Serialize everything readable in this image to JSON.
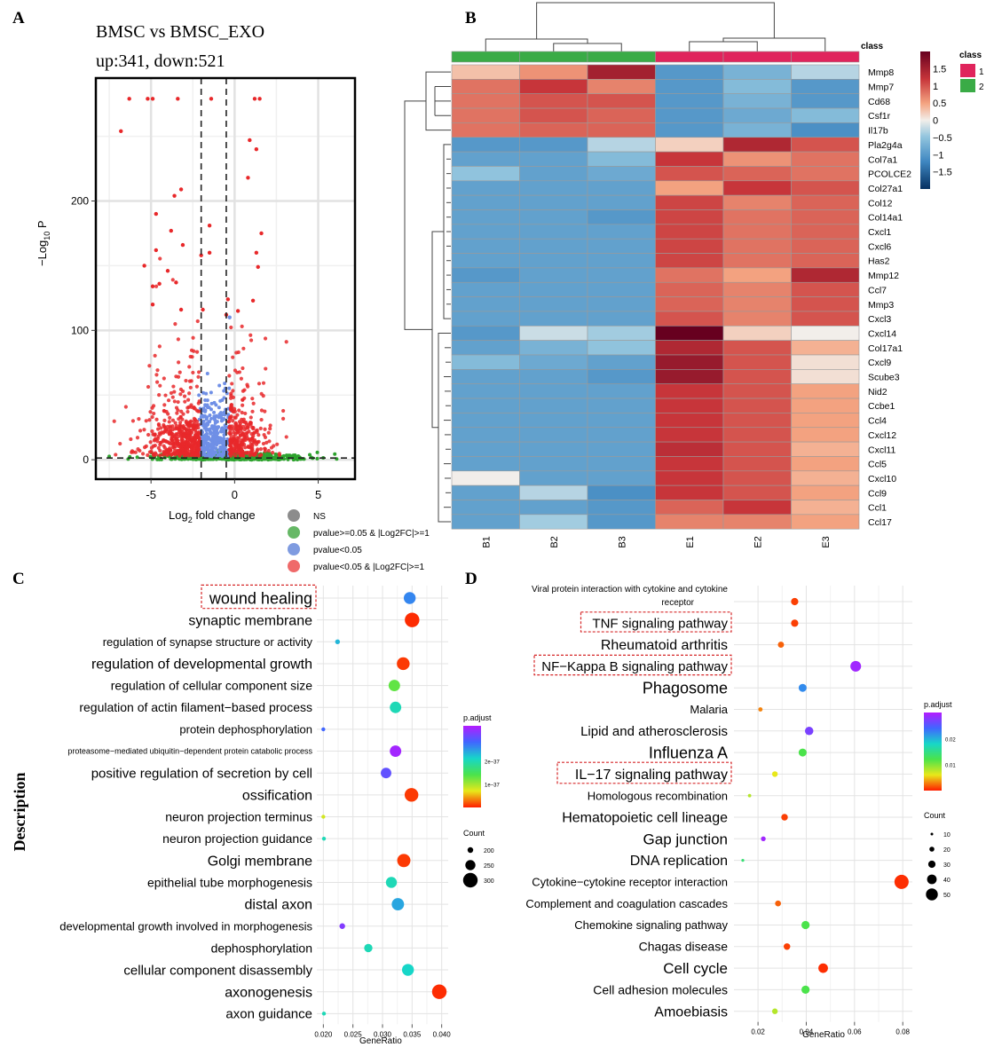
{
  "panels": {
    "A": "A",
    "B": "B",
    "C": "C",
    "D": "D"
  },
  "chart_data": [
    {
      "type": "scatter",
      "panel": "A",
      "title": "BMSC vs BMSC_EXO",
      "subtitle": "up:341, down:521",
      "xlabel_pre": "Log",
      "xlabel_sub": "2",
      "xlabel_post": " fold change",
      "ylabel_pre": "−Log",
      "ylabel_sub": "10",
      "ylabel_post": " P",
      "xlim": [
        -8.3,
        7.2
      ],
      "ylim": [
        -15,
        295
      ],
      "x_ticks": [
        -5,
        0,
        5
      ],
      "x_tick_labels": [
        "-5",
        "0",
        "5"
      ],
      "y_ticks": [
        0,
        100,
        200
      ],
      "y_tick_labels": [
        "0",
        "100",
        "200"
      ],
      "fc_threshold": [
        -2,
        -0.5
      ],
      "p_threshold": 1.3,
      "legend": [
        {
          "label": "NS",
          "color": "#8c8c8c"
        },
        {
          "label": "pvalue>=0.05 & |Log2FC|>=1",
          "color": "#66b866"
        },
        {
          "label": "pvalue<0.05",
          "color": "#7f9be0"
        },
        {
          "label": "pvalue<0.05 & |Log2FC|>=1",
          "color": "#ef6a6a"
        }
      ],
      "colors": {
        "red": "#e8282a",
        "blue": "#6f8fe6",
        "green": "#2ea32e",
        "gray": "#8c8c8c"
      },
      "highlight_points": [
        [
          -6.3,
          279
        ],
        [
          -5.2,
          279
        ],
        [
          -4.9,
          279
        ],
        [
          -3.4,
          279
        ],
        [
          -1.4,
          279
        ],
        [
          1.2,
          279
        ],
        [
          1.5,
          279
        ],
        [
          -6.8,
          254
        ],
        [
          0.9,
          247
        ],
        [
          1.3,
          240
        ],
        [
          0.8,
          218
        ],
        [
          -3.2,
          209
        ],
        [
          -3.6,
          204
        ],
        [
          -4.7,
          190
        ],
        [
          -1.5,
          181
        ],
        [
          -3.8,
          177
        ],
        [
          1.6,
          175
        ],
        [
          -3.1,
          166
        ],
        [
          -4.7,
          162
        ],
        [
          1.3,
          160
        ],
        [
          -1.5,
          160
        ],
        [
          -2.0,
          158
        ],
        [
          -5.4,
          150
        ],
        [
          -4.0,
          146
        ],
        [
          1.4,
          149
        ],
        [
          -4.5,
          136
        ],
        [
          -3.5,
          137
        ],
        [
          -4.9,
          134
        ],
        [
          1.1,
          123
        ],
        [
          -0.4,
          124
        ],
        [
          -4.9,
          120
        ],
        [
          -3.2,
          116
        ],
        [
          -1.9,
          116
        ],
        [
          0.2,
          115
        ],
        [
          -0.5,
          112
        ]
      ],
      "blue_highlight": [
        [
          -0.3,
          110
        ]
      ],
      "annotation": {
        "note": ""
      }
    },
    {
      "type": "heatmap",
      "panel": "B",
      "columns": [
        "B1",
        "B2",
        "B3",
        "E1",
        "E2",
        "E3"
      ],
      "column_class": [
        2,
        2,
        2,
        1,
        1,
        1
      ],
      "class_title": "class",
      "class_colors": {
        "1": "#e0245c",
        "2": "#3aab46"
      },
      "class_labels": [
        "1",
        "2"
      ],
      "rows": [
        "Mmp8",
        "Mmp7",
        "Cd68",
        "Csf1r",
        "Il17b",
        "Pla2g4a",
        "Col7a1",
        "PCOLCE2",
        "Col27a1",
        "Col12",
        "Col14a1",
        "Cxcl1",
        "Cxcl6",
        "Has2",
        "Mmp12",
        "Ccl7",
        "Mmp3",
        "Cxcl3",
        "Cxcl14",
        "Col17a1",
        "Cxcl9",
        "Scube3",
        "Nid2",
        "Ccbe1",
        "Ccl4",
        "Cxcl12",
        "Cxcl11",
        "Ccl5",
        "Cxcl10",
        "Ccl9",
        "Ccl1",
        "Ccl17"
      ],
      "values": [
        [
          0.3,
          0.6,
          1.5,
          -1.0,
          -0.7,
          -0.3
        ],
        [
          0.8,
          1.2,
          0.7,
          -1.0,
          -0.6,
          -1.0
        ],
        [
          0.8,
          1.0,
          1.0,
          -1.0,
          -0.7,
          -1.0
        ],
        [
          0.8,
          1.0,
          0.9,
          -1.0,
          -0.8,
          -0.6
        ],
        [
          0.8,
          0.9,
          0.9,
          -1.0,
          -0.7,
          -1.1
        ],
        [
          -1.0,
          -1.0,
          -0.3,
          0.2,
          1.4,
          1.0
        ],
        [
          -0.9,
          -0.9,
          -0.6,
          1.2,
          0.6,
          0.8
        ],
        [
          -0.5,
          -0.9,
          -0.8,
          1.0,
          0.9,
          0.8
        ],
        [
          -0.9,
          -0.9,
          -0.9,
          0.5,
          1.2,
          1.0
        ],
        [
          -0.9,
          -0.9,
          -0.9,
          1.1,
          0.7,
          0.9
        ],
        [
          -0.9,
          -0.9,
          -1.0,
          1.1,
          0.8,
          0.9
        ],
        [
          -0.9,
          -0.9,
          -0.9,
          1.1,
          0.8,
          0.9
        ],
        [
          -0.9,
          -0.9,
          -0.9,
          1.1,
          0.8,
          0.9
        ],
        [
          -0.9,
          -0.9,
          -0.9,
          1.1,
          0.8,
          0.9
        ],
        [
          -1.0,
          -0.9,
          -0.9,
          0.8,
          0.5,
          1.4
        ],
        [
          -0.9,
          -0.9,
          -0.9,
          0.9,
          0.7,
          1.0
        ],
        [
          -0.9,
          -0.9,
          -0.9,
          0.9,
          0.7,
          1.0
        ],
        [
          -0.9,
          -0.9,
          -0.9,
          1.0,
          0.7,
          1.0
        ],
        [
          -1.0,
          -0.2,
          -0.4,
          2.0,
          0.2,
          0.0
        ],
        [
          -0.9,
          -0.7,
          -0.5,
          1.4,
          1.0,
          0.4
        ],
        [
          -0.6,
          -0.8,
          -0.9,
          1.6,
          1.0,
          0.1
        ],
        [
          -0.9,
          -0.9,
          -1.0,
          1.6,
          1.0,
          0.1
        ],
        [
          -0.9,
          -0.9,
          -0.9,
          1.2,
          1.0,
          0.5
        ],
        [
          -0.9,
          -0.9,
          -0.9,
          1.2,
          1.0,
          0.5
        ],
        [
          -0.9,
          -0.9,
          -0.9,
          1.2,
          1.0,
          0.5
        ],
        [
          -0.9,
          -0.9,
          -0.9,
          1.2,
          1.0,
          0.5
        ],
        [
          -0.9,
          -0.9,
          -0.9,
          1.3,
          1.0,
          0.4
        ],
        [
          -0.9,
          -0.9,
          -0.9,
          1.2,
          1.0,
          0.5
        ],
        [
          0.0,
          -0.9,
          -0.9,
          1.2,
          1.0,
          0.4
        ],
        [
          -0.9,
          -0.3,
          -1.1,
          1.2,
          1.0,
          0.5
        ],
        [
          -0.9,
          -0.9,
          -1.0,
          0.9,
          1.2,
          0.4
        ],
        [
          -0.9,
          -0.4,
          -1.0,
          0.7,
          0.7,
          0.5
        ]
      ],
      "colorbar_ticks": [
        "1.5",
        "1",
        "0.5",
        "0",
        "−0.5",
        "−1",
        "−1.5"
      ],
      "colorbar_tick_values": [
        1.5,
        1,
        0.5,
        0,
        -0.5,
        -1,
        -1.5
      ],
      "color_range": [
        -2,
        2
      ]
    },
    {
      "type": "scatter",
      "subtype": "dotplot",
      "panel": "C",
      "xlabel": "GeneRatio",
      "ylabel": "Description",
      "xlim": [
        0.0195,
        0.0405
      ],
      "x_ticks": [
        0.02,
        0.025,
        0.03,
        0.035,
        0.04
      ],
      "x_tick_labels": [
        "0.020",
        "0.025",
        "0.030",
        "0.035",
        "0.040"
      ],
      "terms": [
        {
          "label": "wound healing",
          "gene_ratio": 0.0346,
          "count": 270,
          "padj": 2.6e-37,
          "boxed": true
        },
        {
          "label": "synaptic membrane",
          "gene_ratio": 0.035,
          "count": 300,
          "padj": 5e-39,
          "boxed": false
        },
        {
          "label": "regulation of synapse structure or activity",
          "gene_ratio": 0.0224,
          "count": 190,
          "padj": 2.3e-37,
          "boxed": false
        },
        {
          "label": "regulation of developmental growth",
          "gene_ratio": 0.0335,
          "count": 280,
          "padj": 1e-38,
          "boxed": false
        },
        {
          "label": "regulation of cellular component size",
          "gene_ratio": 0.032,
          "count": 265,
          "padj": 1.3e-37,
          "boxed": false
        },
        {
          "label": "regulation of actin filament−based process",
          "gene_ratio": 0.0322,
          "count": 265,
          "padj": 2e-37,
          "boxed": false
        },
        {
          "label": "protein dephosphorylation",
          "gene_ratio": 0.02,
          "count": 180,
          "padj": 2.8e-37,
          "boxed": false
        },
        {
          "label": "proteasome−mediated ubiquitin−dependent protein catabolic process",
          "gene_ratio": 0.0322,
          "count": 265,
          "padj": 3.4e-37,
          "boxed": false
        },
        {
          "label": "positive regulation of secretion by cell",
          "gene_ratio": 0.0306,
          "count": 255,
          "padj": 3e-37,
          "boxed": false
        },
        {
          "label": "ossification",
          "gene_ratio": 0.0349,
          "count": 290,
          "padj": 1e-38,
          "boxed": false
        },
        {
          "label": "neuron projection terminus",
          "gene_ratio": 0.02,
          "count": 180,
          "padj": 8e-38,
          "boxed": false
        },
        {
          "label": "neuron projection guidance",
          "gene_ratio": 0.0201,
          "count": 180,
          "padj": 2e-37,
          "boxed": false
        },
        {
          "label": "Golgi membrane",
          "gene_ratio": 0.0336,
          "count": 285,
          "padj": 1e-38,
          "boxed": false
        },
        {
          "label": "epithelial tube morphogenesis",
          "gene_ratio": 0.0315,
          "count": 260,
          "padj": 2e-37,
          "boxed": false
        },
        {
          "label": "distal axon",
          "gene_ratio": 0.0326,
          "count": 275,
          "padj": 2.4e-37,
          "boxed": false
        },
        {
          "label": "developmental growth involved in morphogenesis",
          "gene_ratio": 0.0232,
          "count": 200,
          "padj": 3.2e-37,
          "boxed": false
        },
        {
          "label": "dephosphorylation",
          "gene_ratio": 0.0276,
          "count": 230,
          "padj": 2e-37,
          "boxed": false
        },
        {
          "label": "cellular component disassembly",
          "gene_ratio": 0.0343,
          "count": 270,
          "padj": 2.1e-37,
          "boxed": false
        },
        {
          "label": "axonogenesis",
          "gene_ratio": 0.0396,
          "count": 300,
          "padj": 5e-39,
          "boxed": false
        },
        {
          "label": "axon guidance",
          "gene_ratio": 0.0201,
          "count": 180,
          "padj": 2e-37,
          "boxed": false
        }
      ],
      "legend_color_title": "p.adjust",
      "legend_color_ticks": [
        "2e−37",
        "1e−37"
      ],
      "legend_color_tick_values": [
        2e-37,
        1e-37
      ],
      "color_range": [
        0,
        3.5e-37
      ],
      "legend_size_title": "Count",
      "legend_size_labels": [
        "200",
        "250",
        "300"
      ],
      "legend_size_values": [
        200,
        250,
        300
      ],
      "size_range": [
        180,
        300
      ]
    },
    {
      "type": "scatter",
      "subtype": "dotplot",
      "panel": "D",
      "xlabel": "GeneRatio",
      "xlim": [
        0.0115,
        0.0825
      ],
      "x_ticks": [
        0.02,
        0.04,
        0.06,
        0.08
      ],
      "x_tick_labels": [
        "0.02",
        "0.04",
        "0.06",
        "0.08"
      ],
      "terms": [
        {
          "label": "Viral protein interaction with cytokine and cytokine receptor",
          "lines": [
            "Viral protein interaction with cytokine and cytokine",
            "receptor"
          ],
          "gene_ratio": 0.0352,
          "count": 30,
          "padj": 0.001,
          "boxed": false
        },
        {
          "label": "TNF signaling pathway",
          "gene_ratio": 0.0352,
          "count": 30,
          "padj": 0.001,
          "boxed": true
        },
        {
          "label": "Rheumatoid arthritis",
          "gene_ratio": 0.0295,
          "count": 25,
          "padj": 0.002,
          "boxed": false
        },
        {
          "label": "NF−Kappa B signaling pathway",
          "gene_ratio": 0.0605,
          "count": 45,
          "padj": 0.029,
          "boxed": true
        },
        {
          "label": "Phagosome",
          "gene_ratio": 0.0385,
          "count": 33,
          "padj": 0.022,
          "boxed": false
        },
        {
          "label": "Malaria",
          "gene_ratio": 0.021,
          "count": 17,
          "padj": 0.003,
          "boxed": false
        },
        {
          "label": "Lipid and atherosclerosis",
          "gene_ratio": 0.0412,
          "count": 35,
          "padj": 0.027,
          "boxed": false
        },
        {
          "label": "Influenza A",
          "gene_ratio": 0.0385,
          "count": 33,
          "padj": 0.012,
          "boxed": false
        },
        {
          "label": "IL−17 signaling pathway",
          "gene_ratio": 0.027,
          "count": 23,
          "padj": 0.006,
          "boxed": true
        },
        {
          "label": "Homologous recombination",
          "gene_ratio": 0.0165,
          "count": 13,
          "padj": 0.008,
          "boxed": false
        },
        {
          "label": "Hematopoietic cell lineage",
          "gene_ratio": 0.031,
          "count": 27,
          "padj": 0.001,
          "boxed": false
        },
        {
          "label": "Gap junction",
          "gene_ratio": 0.0222,
          "count": 19,
          "padj": 0.029,
          "boxed": false
        },
        {
          "label": "DNA replication",
          "gene_ratio": 0.0137,
          "count": 11,
          "padj": 0.014,
          "boxed": false
        },
        {
          "label": "Cytokine−cytokine receptor interaction",
          "gene_ratio": 0.0795,
          "count": 60,
          "padj": 0.0005,
          "boxed": false
        },
        {
          "label": "Complement and coagulation cascades",
          "gene_ratio": 0.0283,
          "count": 24,
          "padj": 0.002,
          "boxed": false
        },
        {
          "label": "Chemokine signaling pathway",
          "gene_ratio": 0.0397,
          "count": 34,
          "padj": 0.012,
          "boxed": false
        },
        {
          "label": "Chagas disease",
          "gene_ratio": 0.032,
          "count": 27,
          "padj": 0.001,
          "boxed": false
        },
        {
          "label": "Cell cycle",
          "gene_ratio": 0.047,
          "count": 40,
          "padj": 0.0005,
          "boxed": false
        },
        {
          "label": "Cell adhesion molecules",
          "gene_ratio": 0.0397,
          "count": 34,
          "padj": 0.012,
          "boxed": false
        },
        {
          "label": "Amoebiasis",
          "gene_ratio": 0.027,
          "count": 23,
          "padj": 0.008,
          "boxed": false
        }
      ],
      "legend_color_title": "p.adjust",
      "legend_color_ticks": [
        "0.02",
        "0.01"
      ],
      "legend_color_tick_values": [
        0.02,
        0.01
      ],
      "color_range": [
        0,
        0.03
      ],
      "legend_size_title": "Count",
      "legend_size_labels": [
        "10",
        "20",
        "30",
        "40",
        "50"
      ],
      "legend_size_values": [
        10,
        20,
        30,
        40,
        50
      ],
      "size_range": [
        10,
        60
      ]
    }
  ]
}
